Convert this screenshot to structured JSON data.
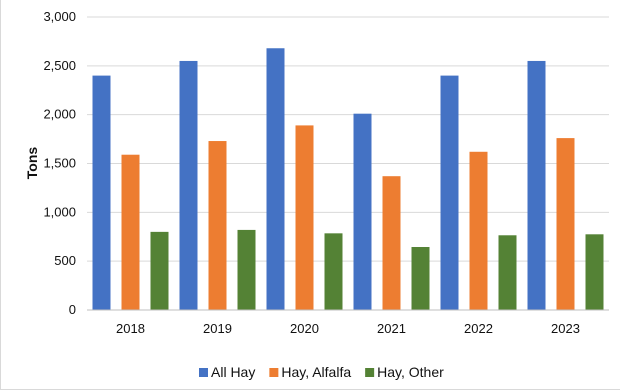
{
  "chart_data": {
    "type": "bar",
    "title": "",
    "xlabel": "",
    "ylabel": "Tons",
    "categories": [
      "2018",
      "2019",
      "2020",
      "2021",
      "2022",
      "2023"
    ],
    "ylim": [
      0,
      3000
    ],
    "yticks": [
      0,
      500,
      1000,
      1500,
      2000,
      2500,
      3000
    ],
    "ytick_labels": [
      "0",
      "500",
      "1,000",
      "1,500",
      "2,000",
      "2,500",
      "3,000"
    ],
    "grid": true,
    "legend_position": "bottom",
    "series": [
      {
        "name": "All Hay",
        "color": "#4472C4",
        "values": [
          2400,
          2550,
          2680,
          2010,
          2400,
          2550
        ]
      },
      {
        "name": "Hay, Alfalfa",
        "color": "#ED7D31",
        "values": [
          1590,
          1730,
          1890,
          1370,
          1620,
          1760
        ]
      },
      {
        "name": "Hay, Other",
        "color": "#548235",
        "values": [
          800,
          820,
          785,
          645,
          765,
          775
        ]
      }
    ]
  }
}
